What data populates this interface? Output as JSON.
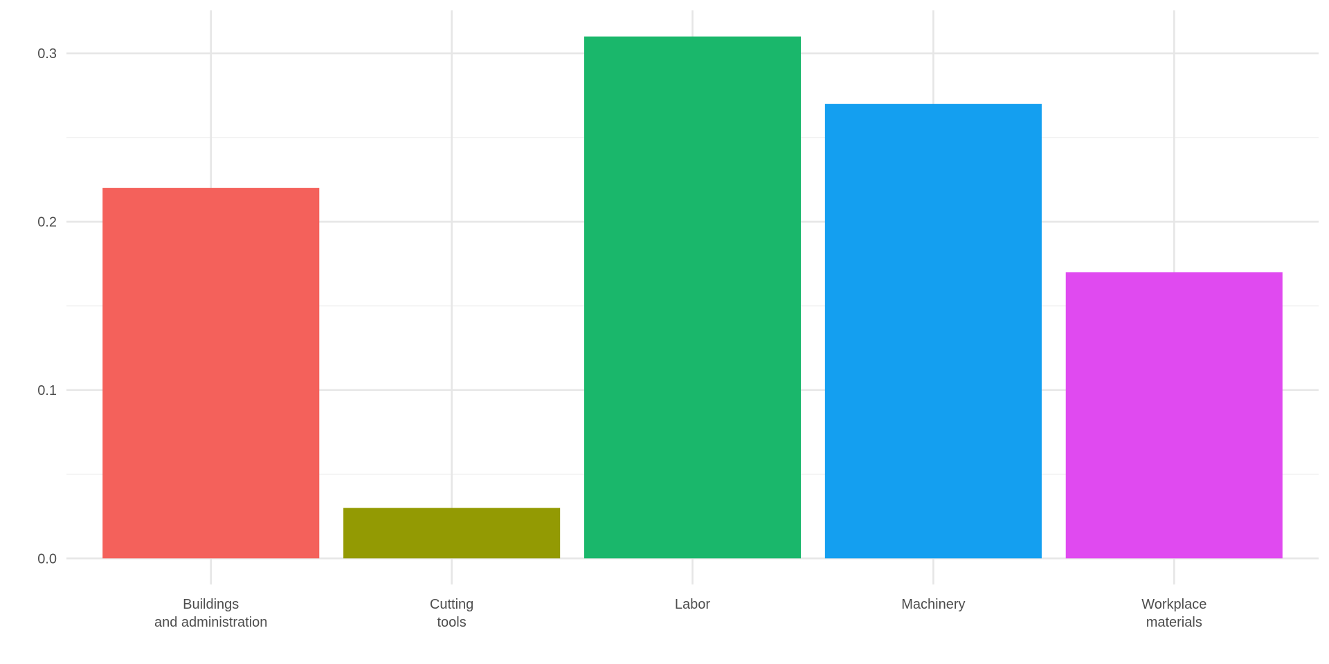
{
  "chart_data": {
    "type": "bar",
    "title": "",
    "xlabel": "",
    "ylabel": "",
    "categories": [
      "Buildings\nand administration",
      "Cutting\ntools",
      "Labor",
      "Machinery",
      "Workplace\nmaterials"
    ],
    "values": [
      0.22,
      0.03,
      0.31,
      0.27,
      0.17
    ],
    "colors": [
      "#F4615B",
      "#939A03",
      "#1AB76B",
      "#149FF0",
      "#E04AF0"
    ],
    "ylim": [
      -0.0155,
      0.3255
    ],
    "yticks": [
      0.0,
      0.1,
      0.2,
      0.3
    ],
    "ytick_labels": [
      "0.0",
      "0.1",
      "0.2",
      "0.3"
    ],
    "grid": true,
    "legend": "none"
  }
}
